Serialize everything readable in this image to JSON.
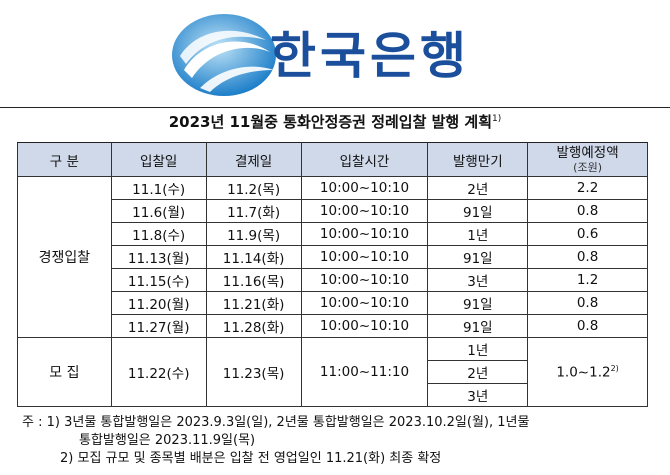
{
  "header": {
    "logo_text": "한국은행"
  },
  "title": {
    "text": "2023년 11월중 통화안정증권 정례입찰 발행 계획",
    "footnote_mark": "1)"
  },
  "table": {
    "headers": {
      "category": "구 분",
      "bid_date": "입찰일",
      "settle_date": "결제일",
      "bid_time": "입찰시간",
      "maturity": "발행만기",
      "amount": "발행예정액",
      "amount_unit": "(조원)"
    },
    "competitive": {
      "label": "경쟁입찰",
      "rows": [
        {
          "bid_date": "11.1(수)",
          "settle_date": "11.2(목)",
          "bid_time": "10:00~10:10",
          "maturity": "2년",
          "amount": "2.2"
        },
        {
          "bid_date": "11.6(월)",
          "settle_date": "11.7(화)",
          "bid_time": "10:00~10:10",
          "maturity": "91일",
          "amount": "0.8"
        },
        {
          "bid_date": "11.8(수)",
          "settle_date": "11.9(목)",
          "bid_time": "10:00~10:10",
          "maturity": "1년",
          "amount": "0.6"
        },
        {
          "bid_date": "11.13(월)",
          "settle_date": "11.14(화)",
          "bid_time": "10:00~10:10",
          "maturity": "91일",
          "amount": "0.8"
        },
        {
          "bid_date": "11.15(수)",
          "settle_date": "11.16(목)",
          "bid_time": "10:00~10:10",
          "maturity": "3년",
          "amount": "1.2"
        },
        {
          "bid_date": "11.20(월)",
          "settle_date": "11.21(화)",
          "bid_time": "10:00~10:10",
          "maturity": "91일",
          "amount": "0.8"
        },
        {
          "bid_date": "11.27(월)",
          "settle_date": "11.28(화)",
          "bid_time": "10:00~10:10",
          "maturity": "91일",
          "amount": "0.8"
        }
      ]
    },
    "offering": {
      "label": "모 집",
      "bid_date": "11.22(수)",
      "settle_date": "11.23(목)",
      "bid_time": "11:00~11:10",
      "maturities": [
        "1년",
        "2년",
        "3년"
      ],
      "amount": "1.0~1.2",
      "amount_footnote": "2)"
    }
  },
  "notes": {
    "prefix": "주 :",
    "note1_mark": "1)",
    "note1_line1": "3년물 통합발행일은 2023.9.3일(일), 2년물 통합발행일은 2023.10.2일(월), 1년물",
    "note1_line2": "통합발행일은 2023.11.9일(목)",
    "note2_mark": "2)",
    "note2_text": "모집 규모 및 종목별 배분은 입찰 전 영업일인 11.21(화) 최종 확정"
  },
  "colors": {
    "logo_blue": "#1b4f9c",
    "header_fill": "#cfd9ea"
  }
}
